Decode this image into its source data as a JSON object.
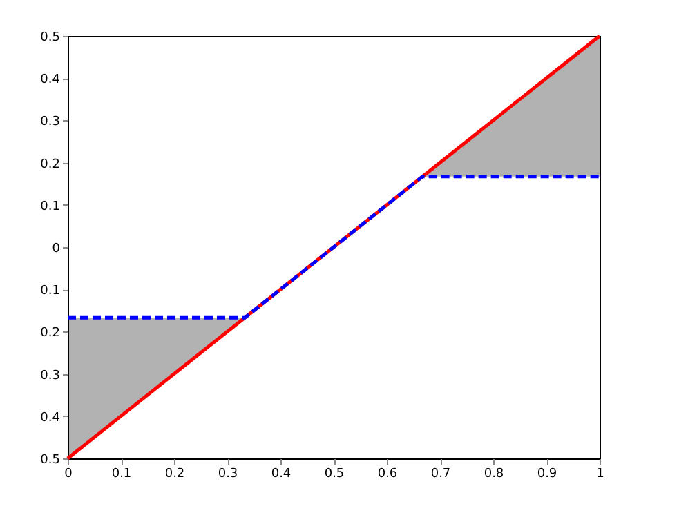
{
  "chart_data": {
    "type": "line",
    "x": [
      0,
      0.333,
      0.667,
      1
    ],
    "series": [
      {
        "color": "#ff0000",
        "values": [
          -0.5,
          -0.167,
          0.167,
          0.5
        ],
        "line_style": "solid"
      },
      {
        "color": "#0000ff",
        "values": [
          -0.167,
          -0.167,
          0.167,
          0.167
        ],
        "line_style": "dashed",
        "lower": [
          -0.5,
          -0.167,
          0.167,
          0.167
        ],
        "upper": [
          -0.167,
          -0.167,
          0.167,
          0.5
        ]
      }
    ],
    "xlim": [
      0,
      1
    ],
    "xticks": [
      0,
      0.1,
      0.2,
      0.3,
      0.4,
      0.5,
      0.6,
      0.7,
      0.8,
      0.9,
      1
    ],
    "ylim": [
      -0.5,
      0.5
    ],
    "yticks": [
      {
        "value": -0.5,
        "label": "0.5"
      },
      {
        "value": -0.4,
        "label": "0.4"
      },
      {
        "value": -0.3,
        "label": "0.3"
      },
      {
        "value": -0.2,
        "label": "0.2"
      },
      {
        "value": -0.1,
        "label": "0.1"
      },
      0,
      0.1,
      0.2,
      0.3,
      0.4,
      0.5
    ],
    "grid": false
  }
}
